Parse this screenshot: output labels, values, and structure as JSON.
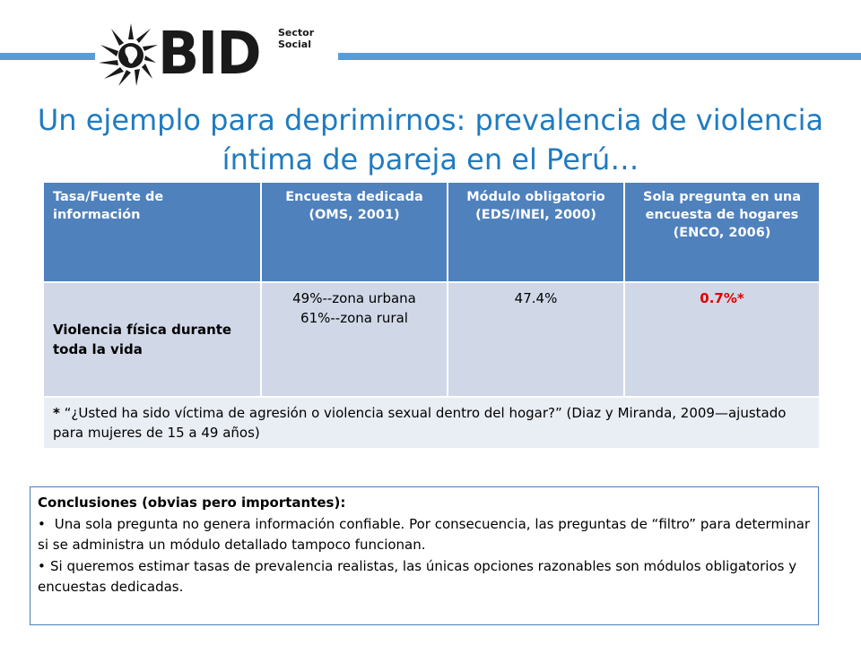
{
  "brand": {
    "logo_text": "BID",
    "logo_subtitle": "Sector Social",
    "accent_color": "#5b9bd5",
    "title_color": "#1f7bc0",
    "table_header_color": "#4f81bd",
    "table_body_color": "#d0d8e8",
    "highlight_color": "#e00000",
    "logo_icon": "globe-sunburst-icon"
  },
  "title": "Un ejemplo para deprimirnos:  prevalencia de violencia íntima de pareja en el Perú…",
  "table": {
    "headers": [
      "Tasa/Fuente de información",
      "Encuesta dedicada\n(OMS, 2001)",
      "Módulo obligatorio\n(EDS/INEI, 2000)",
      "Sola pregunta en una encuesta de hogares\n(ENCO, 2006)"
    ],
    "row": {
      "label": "Violencia física durante toda la vida",
      "dedicated": "49%--zona urbana\n61%--zona rural",
      "mandatory": "47.4%",
      "single_question": "0.7%*"
    },
    "note_mark": "*",
    "note_text": " “¿Usted ha sido víctima de agresión o violencia sexual dentro del hogar?”  (Diaz y Miranda, 2009—ajustado para mujeres de 15 a 49 años)"
  },
  "conclusions": {
    "heading": "Conclusiones (obvias pero importantes):",
    "bullet_char": "•",
    "items": [
      " Una sola pregunta no genera información confiable.  Por consecuencia, las preguntas de “filtro” para determinar si se administra un módulo detallado tampoco funcionan.",
      "Si queremos estimar tasas de prevalencia realistas,  las únicas opciones razonables son módulos obligatorios y encuestas dedicadas."
    ]
  }
}
